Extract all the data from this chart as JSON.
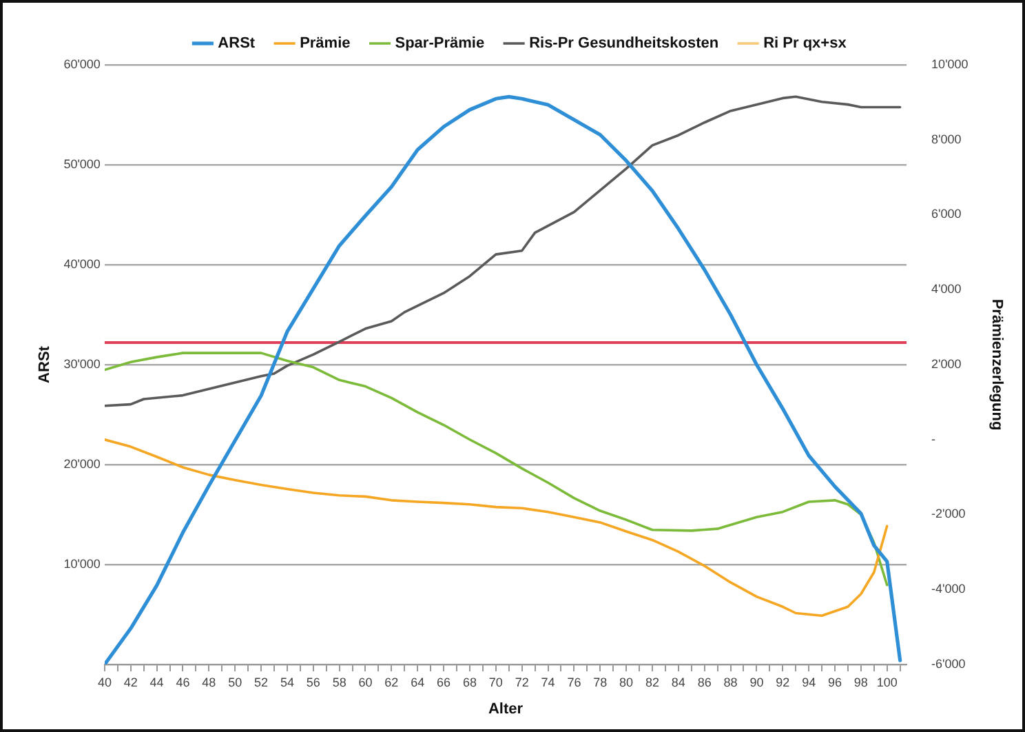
{
  "chart_data": {
    "type": "line",
    "xlabel": "Alter",
    "ylabel": "ARSt",
    "y2label": "Prämienzerlegung",
    "xlim": [
      40,
      101.5
    ],
    "xticks": [
      40,
      {
        "value": 41,
        "label": null
      },
      42,
      {
        "value": 43,
        "label": null
      },
      44,
      {
        "value": 45,
        "label": null
      },
      46,
      {
        "value": 47,
        "label": null
      },
      48,
      {
        "value": 49,
        "label": null
      },
      50,
      {
        "value": 51,
        "label": null
      },
      52,
      {
        "value": 53,
        "label": null
      },
      54,
      {
        "value": 55,
        "label": null
      },
      56,
      {
        "value": 57,
        "label": null
      },
      58,
      {
        "value": 59,
        "label": null
      },
      60,
      {
        "value": 61,
        "label": null
      },
      62,
      {
        "value": 63,
        "label": null
      },
      64,
      {
        "value": 65,
        "label": null
      },
      66,
      {
        "value": 67,
        "label": null
      },
      68,
      {
        "value": 69,
        "label": null
      },
      70,
      {
        "value": 71,
        "label": null
      },
      72,
      {
        "value": 73,
        "label": null
      },
      74,
      {
        "value": 75,
        "label": null
      },
      76,
      {
        "value": 77,
        "label": null
      },
      78,
      {
        "value": 79,
        "label": null
      },
      80,
      {
        "value": 81,
        "label": null
      },
      82,
      {
        "value": 83,
        "label": null
      },
      84,
      {
        "value": 85,
        "label": null
      },
      86,
      {
        "value": 87,
        "label": null
      },
      88,
      {
        "value": 89,
        "label": null
      },
      90,
      {
        "value": 91,
        "label": null
      },
      92,
      {
        "value": 93,
        "label": null
      },
      94,
      {
        "value": 95,
        "label": null
      },
      96,
      {
        "value": 97,
        "label": null
      },
      98,
      {
        "value": 99,
        "label": null
      },
      100,
      {
        "value": 101,
        "label": null
      }
    ],
    "ylim": [
      0,
      60000
    ],
    "yticks": [
      {
        "value": 0,
        "label": null
      },
      {
        "value": 10000,
        "label": "10'000"
      },
      {
        "value": 20000,
        "label": "20'000"
      },
      {
        "value": 30000,
        "label": "30'000"
      },
      {
        "value": 40000,
        "label": "40'000"
      },
      {
        "value": 50000,
        "label": "50'000"
      },
      {
        "value": 60000,
        "label": "60'000"
      }
    ],
    "y2lim": [
      -6000,
      10000
    ],
    "y2ticks": [
      {
        "value": -6000,
        "label": "-6'000"
      },
      {
        "value": -4000,
        "label": "-4'000"
      },
      {
        "value": -2000,
        "label": "-2'000"
      },
      {
        "value": 0,
        "label": "-"
      },
      {
        "value": 2000,
        "label": "2'000"
      },
      {
        "value": 4000,
        "label": "4'000"
      },
      {
        "value": 6000,
        "label": "6'000"
      },
      {
        "value": 8000,
        "label": "8'000"
      },
      {
        "value": 10000,
        "label": "10'000"
      }
    ],
    "grid": "y",
    "legend": "top",
    "marker": "none",
    "line_style": "solid",
    "ref_lines": [
      {
        "axis": "y",
        "value": 32200,
        "color": "#e0405a"
      }
    ],
    "series": [
      {
        "name": "ARSt",
        "color": "#2e8fd6",
        "x": [
          40,
          42,
          44,
          46,
          48,
          50,
          52,
          54,
          56,
          58,
          60,
          62,
          64,
          66,
          68,
          70,
          71,
          72,
          74,
          76,
          78,
          80,
          82,
          84,
          86,
          88,
          90,
          92,
          94,
          96,
          98,
          99,
          100,
          101
        ],
        "values": [
          0,
          3600,
          7900,
          13200,
          17900,
          22400,
          26900,
          33300,
          37600,
          41900,
          44900,
          47800,
          51500,
          53800,
          55500,
          56600,
          56800,
          56600,
          56000,
          54500,
          53000,
          50400,
          47400,
          43600,
          39500,
          35000,
          30000,
          25600,
          20900,
          17800,
          15100,
          11900,
          10300,
          400
        ]
      },
      {
        "name": "Prämie",
        "color": "#f5a623",
        "axis": "y2",
        "x": [
          40,
          42,
          44,
          46,
          48,
          50,
          52,
          54,
          56,
          58,
          60,
          62,
          64,
          66,
          68,
          70,
          72,
          74,
          76,
          78,
          80,
          82,
          84,
          86,
          88,
          90,
          92,
          93,
          95,
          97,
          98,
          99,
          100
        ],
        "values": [
          0,
          -190,
          -460,
          -740,
          -940,
          -1080,
          -1210,
          -1320,
          -1420,
          -1490,
          -1520,
          -1620,
          -1660,
          -1690,
          -1730,
          -1800,
          -1830,
          -1930,
          -2070,
          -2210,
          -2450,
          -2680,
          -2990,
          -3370,
          -3810,
          -4190,
          -4460,
          -4630,
          -4700,
          -4460,
          -4120,
          -3540,
          -2310
        ]
      },
      {
        "name": "Spar-Prämie",
        "color": "#7cba3a",
        "axis": "y2",
        "x": [
          40,
          42,
          44,
          46,
          48,
          50,
          52,
          54,
          56,
          58,
          60,
          62,
          64,
          66,
          68,
          70,
          72,
          74,
          76,
          78,
          80,
          82,
          85,
          87,
          90,
          92,
          94,
          96,
          97,
          98,
          99,
          100
        ],
        "values": [
          1860,
          2070,
          2200,
          2310,
          2310,
          2310,
          2310,
          2100,
          1930,
          1590,
          1420,
          1110,
          730,
          390,
          0,
          -360,
          -770,
          -1150,
          -1560,
          -1900,
          -2140,
          -2410,
          -2430,
          -2380,
          -2070,
          -1930,
          -1660,
          -1620,
          -1730,
          -2000,
          -2750,
          -3880
        ]
      },
      {
        "name": "Ris-Pr Gesundheitskosten",
        "color": "#5a5a5a",
        "axis": "y2",
        "x": [
          40,
          42,
          43,
          46,
          48,
          50,
          52,
          53,
          54,
          56,
          58,
          60,
          62,
          63,
          66,
          68,
          70,
          72,
          73,
          76,
          78,
          80,
          82,
          84,
          86,
          88,
          90,
          92,
          93,
          95,
          97,
          98,
          101
        ],
        "values": [
          900,
          940,
          1080,
          1180,
          1350,
          1520,
          1690,
          1760,
          1970,
          2270,
          2610,
          2960,
          3160,
          3400,
          3910,
          4360,
          4940,
          5040,
          5520,
          6070,
          6650,
          7230,
          7850,
          8120,
          8460,
          8770,
          8940,
          9110,
          9150,
          9010,
          8940,
          8870,
          8870
        ]
      },
      {
        "name": "Ri Pr qx+sx",
        "color": "#f9c97a",
        "axis": "y2"
      }
    ]
  }
}
